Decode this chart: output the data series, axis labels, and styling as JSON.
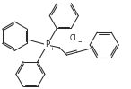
{
  "line_color": "#2a2a2a",
  "line_width": 0.75,
  "text_color": "#1a1a1a",
  "figsize": [
    1.46,
    0.99
  ],
  "dpi": 100,
  "P_label": "P",
  "Cl_label": "Cl⁻",
  "xlim": [
    0,
    146
  ],
  "ylim": [
    0,
    99
  ]
}
